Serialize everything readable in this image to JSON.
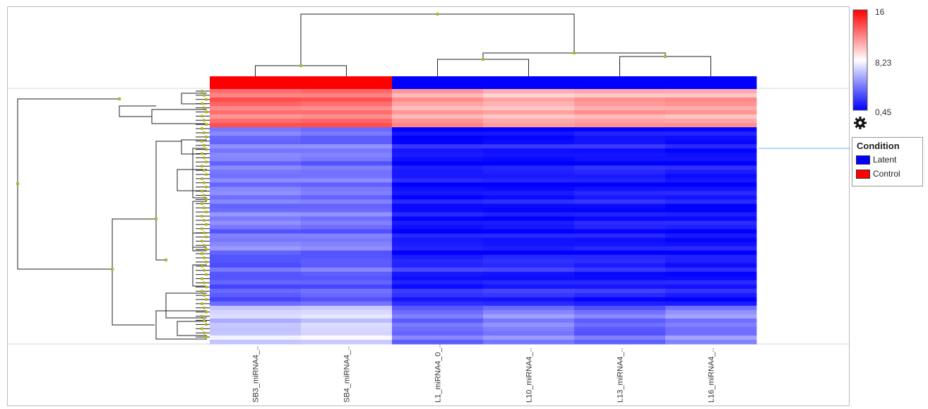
{
  "chart_data": {
    "type": "heatmap",
    "colorscale": {
      "min": 0.45,
      "mid": 8.23,
      "max": 16,
      "min_label": "0,45",
      "mid_label": "8,23",
      "max_label": "16",
      "low_color": "#0000ff",
      "mid_color": "#ffffff",
      "high_color": "#ff0000"
    },
    "columns": [
      "SB3_miRNA4_..",
      "SB4_miRNA4_..",
      "L1_miRNA4_0_..",
      "L10_miRNA4_..",
      "L13_miRNA4_..",
      "L16_miRNA4_.."
    ],
    "column_conditions": [
      "Control",
      "Control",
      "Latent",
      "Latent",
      "Latent",
      "Latent"
    ],
    "condition_legend": {
      "title": "Condition",
      "items": [
        {
          "label": "Latent",
          "color": "#0000ff"
        },
        {
          "label": "Control",
          "color": "#ff0000"
        }
      ]
    },
    "row_blocks": [
      {
        "rows": 9,
        "values": [
          12.5,
          12.5,
          11.0,
          10.5,
          11.0,
          11.0
        ]
      },
      {
        "rows": 30,
        "values": [
          4.2,
          4.0,
          1.0,
          1.0,
          1.2,
          1.0
        ]
      },
      {
        "rows": 12,
        "values": [
          3.2,
          3.4,
          1.5,
          1.6,
          1.4,
          1.2
        ]
      },
      {
        "rows": 9,
        "values": [
          6.6,
          7.0,
          3.8,
          4.5,
          3.6,
          4.4
        ]
      }
    ],
    "grid": false
  }
}
